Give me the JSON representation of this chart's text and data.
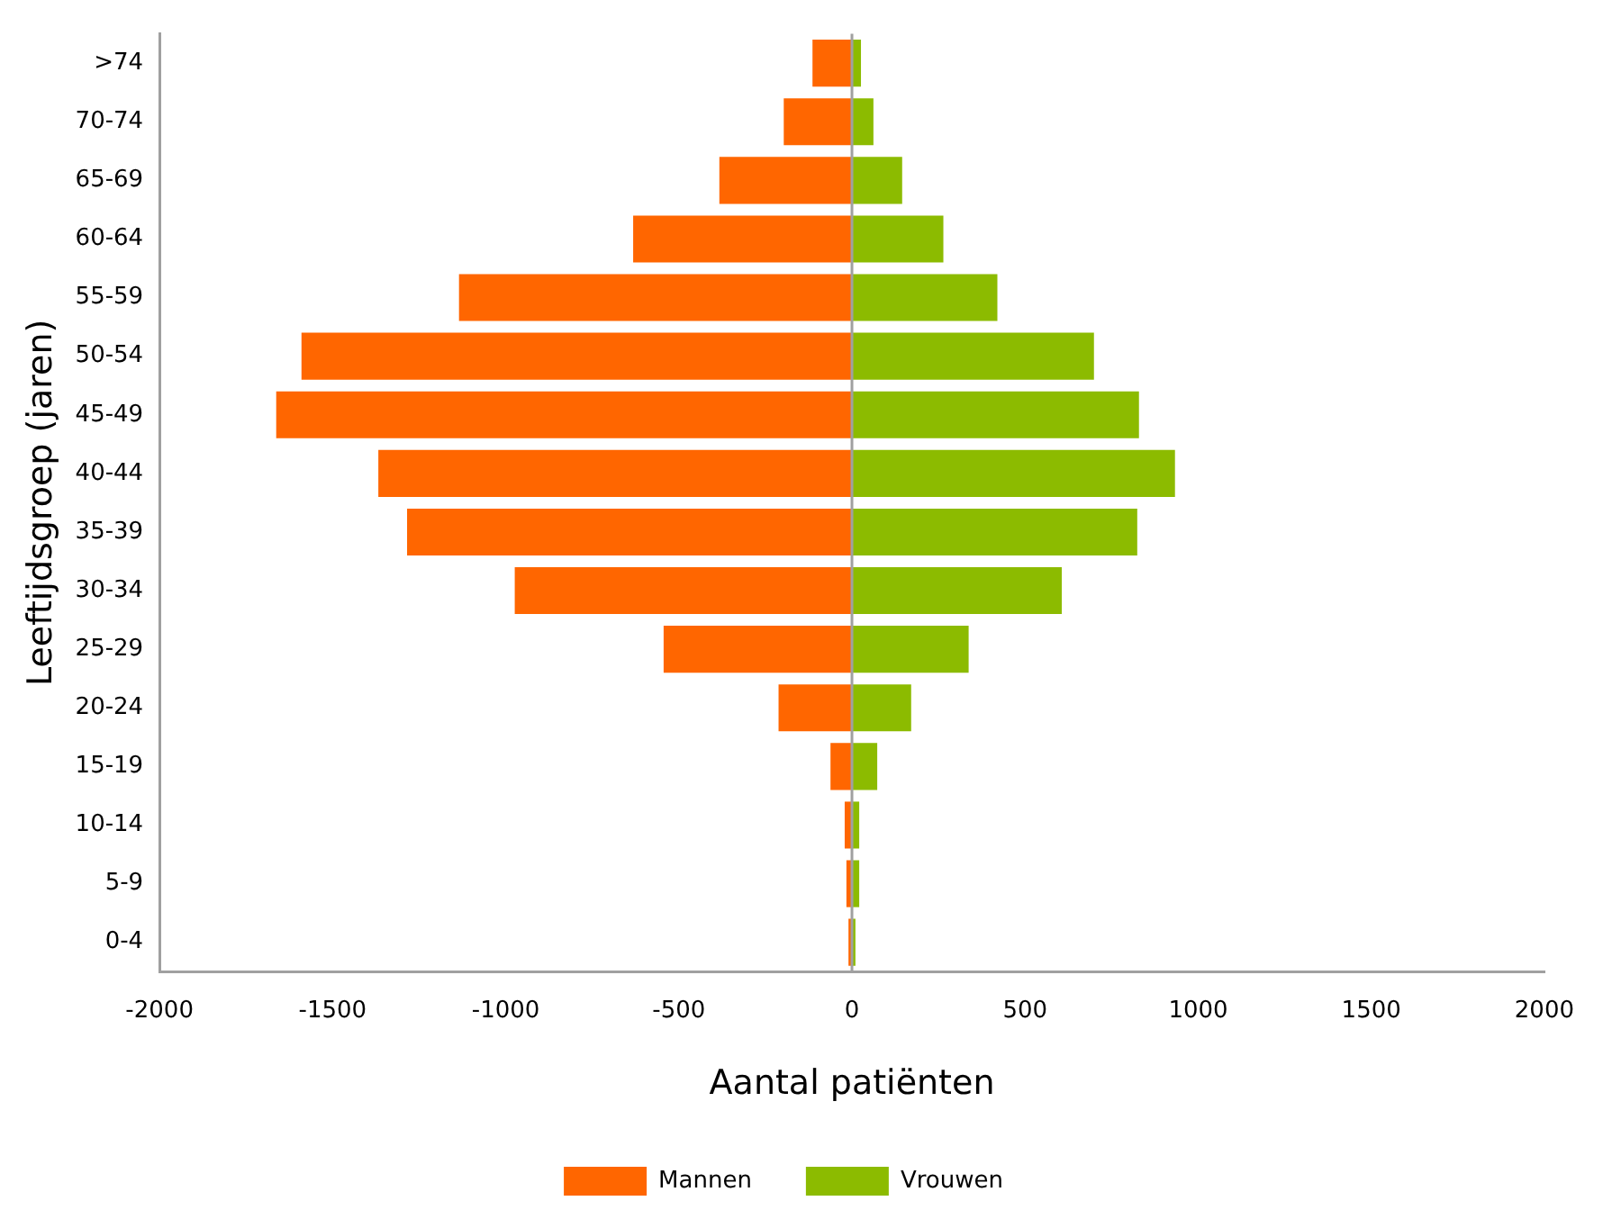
{
  "chart_data": {
    "type": "bar",
    "orientation": "horizontal",
    "stacked": true,
    "xlabel": "Aantal patiënten",
    "ylabel": "Leeftijdsgroep (jaren)",
    "categories": [
      ">74",
      "70-74",
      "65-69",
      "60-64",
      "55-59",
      "50-54",
      "45-49",
      "40-44",
      "35-39",
      "30-34",
      "25-29",
      "20-24",
      "15-19",
      "10-14",
      "5-9",
      "0-4"
    ],
    "series": [
      {
        "name": "Mannen",
        "color": "#ff6600",
        "values": [
          -114,
          -197,
          -383,
          -632,
          -1135,
          -1590,
          -1663,
          -1368,
          -1285,
          -974,
          -544,
          -212,
          -62,
          -21,
          -16,
          -10
        ]
      },
      {
        "name": "Vrouwen",
        "color": "#8cbb00",
        "values": [
          26,
          62,
          145,
          264,
          420,
          699,
          829,
          933,
          824,
          606,
          337,
          171,
          73,
          21,
          21,
          10
        ]
      }
    ],
    "xlim": [
      -2000,
      2000
    ],
    "xticks": [
      -2000,
      -1500,
      -1000,
      -500,
      0,
      500,
      1000,
      1500,
      2000
    ],
    "ref_lines": [
      {
        "axis": "x",
        "value": 0,
        "color": "#a0a0a0"
      }
    ],
    "grid": false,
    "legend": "bottom"
  }
}
